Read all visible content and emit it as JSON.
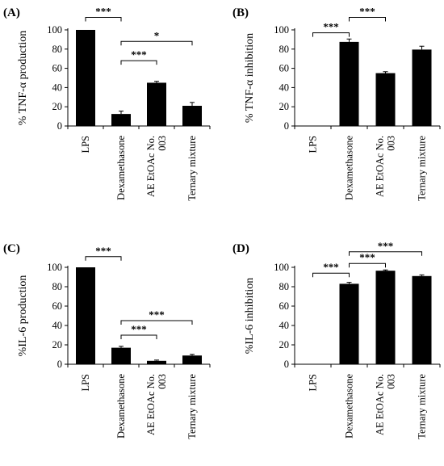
{
  "chart_data": [
    {
      "type": "bar",
      "panel": "(A)",
      "ylabel": "% TNF-α production",
      "categories": [
        "LPS",
        "Dexamethasone",
        "AE EtOAc No. 003",
        "Ternary mixture"
      ],
      "category_lines": [
        [
          "LPS"
        ],
        [
          "Dexamethasone"
        ],
        [
          "AE EtOAc No.",
          "003"
        ],
        [
          "Ternary mixture"
        ]
      ],
      "values": [
        100,
        12.5,
        45,
        21
      ],
      "errors": [
        0,
        3,
        1.5,
        3.5
      ],
      "ylim": [
        0,
        100
      ],
      "yticks": [
        0,
        20,
        40,
        60,
        80,
        100
      ],
      "significance": [
        {
          "from": 0,
          "to": 1,
          "label": "***",
          "level": 113
        },
        {
          "from": 1,
          "to": 2,
          "label": "***",
          "level": 68
        },
        {
          "from": 1,
          "to": 3,
          "label": "*",
          "level": 88
        }
      ]
    },
    {
      "type": "bar",
      "panel": "(B)",
      "ylabel": "% TNF-α inhibition",
      "categories": [
        "LPS",
        "Dexamethasone",
        "AE EtOAc No. 003",
        "Ternary mixture"
      ],
      "category_lines": [
        [
          "LPS"
        ],
        [
          "Dexamethasone"
        ],
        [
          "AE EtOAc No.",
          "003"
        ],
        [
          "Ternary mixture"
        ]
      ],
      "values": [
        0,
        87.5,
        55,
        79.5
      ],
      "errors": [
        0,
        3,
        1.5,
        3.5
      ],
      "ylim": [
        0,
        100
      ],
      "yticks": [
        0,
        20,
        40,
        60,
        80,
        100
      ],
      "significance": [
        {
          "from": 0,
          "to": 1,
          "label": "***",
          "level": 97
        },
        {
          "from": 1,
          "to": 2,
          "label": "***",
          "level": 113
        }
      ]
    },
    {
      "type": "bar",
      "panel": "(C)",
      "ylabel": "%IL-6 production",
      "categories": [
        "LPS",
        "Dexamethasone",
        "AE EtOAc No. 003",
        "Ternary mixture"
      ],
      "category_lines": [
        [
          "LPS"
        ],
        [
          "Dexamethasone"
        ],
        [
          "AE EtOAc No.",
          "003"
        ],
        [
          "Ternary mixture"
        ]
      ],
      "values": [
        100,
        17,
        3.5,
        9
      ],
      "errors": [
        0,
        1.5,
        0.8,
        1.2
      ],
      "ylim": [
        0,
        100
      ],
      "yticks": [
        0,
        20,
        40,
        60,
        80,
        100
      ],
      "significance": [
        {
          "from": 0,
          "to": 1,
          "label": "***",
          "level": 111
        },
        {
          "from": 1,
          "to": 2,
          "label": "***",
          "level": 30
        },
        {
          "from": 1,
          "to": 3,
          "label": "***",
          "level": 45
        }
      ]
    },
    {
      "type": "bar",
      "panel": "(D)",
      "ylabel": "%IL-6 inhibition",
      "categories": [
        "LPS",
        "Dexamethasone",
        "AE EtOAc No. 003",
        "Ternary mixture"
      ],
      "category_lines": [
        [
          "LPS"
        ],
        [
          "Dexamethasone"
        ],
        [
          "AE EtOAc No.",
          "003"
        ],
        [
          "Ternary mixture"
        ]
      ],
      "values": [
        0,
        83,
        96.5,
        91
      ],
      "errors": [
        0,
        1.5,
        0.8,
        1.2
      ],
      "ylim": [
        0,
        100
      ],
      "yticks": [
        0,
        20,
        40,
        60,
        80,
        100
      ],
      "significance": [
        {
          "from": 0,
          "to": 1,
          "label": "***",
          "level": 94
        },
        {
          "from": 1,
          "to": 2,
          "label": "***",
          "level": 104
        },
        {
          "from": 1,
          "to": 3,
          "label": "***",
          "level": 116
        }
      ]
    }
  ]
}
